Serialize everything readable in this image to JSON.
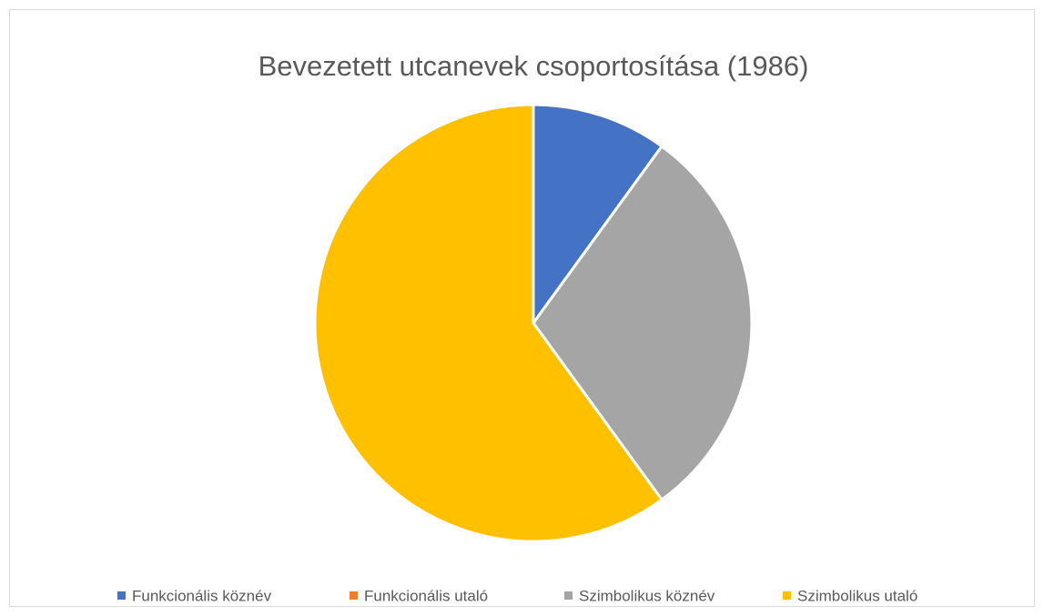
{
  "chart_data": {
    "type": "pie",
    "title": "Bevezetett utcanevek csoportosítása (1986)",
    "categories": [
      "Funkcionális köznév",
      "Funkcionális utaló",
      "Szimbolikus köznév",
      "Szimbolikus utaló"
    ],
    "values": [
      10,
      0,
      30,
      60
    ],
    "colors": [
      "#4472c4",
      "#ed7d31",
      "#a5a5a5",
      "#ffc000"
    ],
    "legend": "bottom"
  }
}
